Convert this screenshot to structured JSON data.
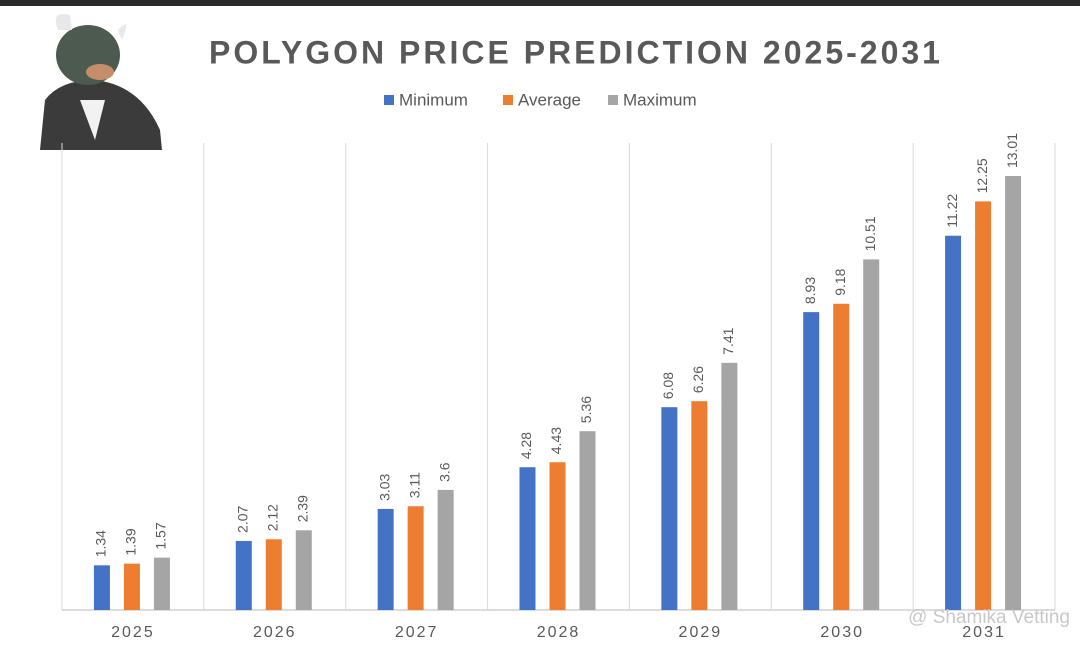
{
  "chart_data": {
    "type": "bar",
    "title": "POLYGON PRICE PREDICTION 2025-2031",
    "watermark": "@ Shamika Vetting",
    "categories": [
      "2025",
      "2026",
      "2027",
      "2028",
      "2029",
      "2030",
      "2031"
    ],
    "series": [
      {
        "name": "Minimum",
        "color": "#4472c4",
        "values": [
          1.34,
          2.07,
          3.03,
          4.28,
          6.08,
          8.93,
          11.22
        ]
      },
      {
        "name": "Average",
        "color": "#ed7d31",
        "values": [
          1.39,
          2.12,
          3.11,
          4.43,
          6.26,
          9.18,
          12.25
        ]
      },
      {
        "name": "Maximum",
        "color": "#a5a5a5",
        "values": [
          1.57,
          2.39,
          3.6,
          5.36,
          7.41,
          10.51,
          13.01
        ]
      }
    ],
    "ylim": [
      0,
      14
    ],
    "legend": "top"
  }
}
